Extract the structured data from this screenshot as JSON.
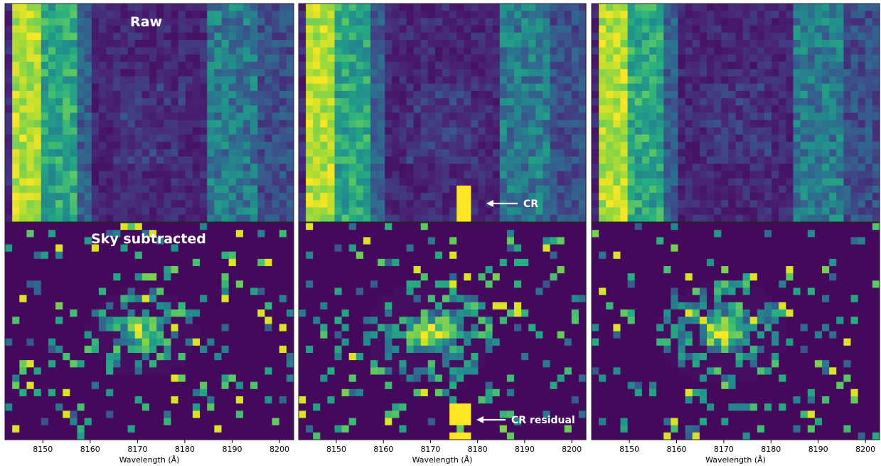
{
  "figure": {
    "colormap": "viridis",
    "colors": {
      "low": "#440154",
      "mid": "#21918c",
      "high": "#fde725",
      "annotation": "#ffffff"
    }
  },
  "labels": {
    "raw": "Raw",
    "sky_subtracted": "Sky subtracted",
    "cr": "CR",
    "cr_residual": "CR residual",
    "xlabel": "Wavelength (Å)"
  },
  "chart_data": {
    "type": "heatmap",
    "panels_layout": "2 rows x 3 columns",
    "x_axis": {
      "label": "Wavelength (Å)",
      "ticks": [
        8150,
        8160,
        8170,
        8180,
        8190,
        8200
      ],
      "xlim": [
        8142,
        8203
      ]
    },
    "panels": [
      {
        "row": "raw",
        "column": 1,
        "title": "Raw",
        "bright_columns_wavelength": [
          8145,
          8148
        ]
      },
      {
        "row": "raw",
        "column": 2,
        "annotation": "CR",
        "cosmic_ray_wavelength": 8176
      },
      {
        "row": "raw",
        "column": 3
      },
      {
        "row": "sky_subtracted",
        "column": 1,
        "title": "Sky subtracted",
        "source_center_wavelength": 8171
      },
      {
        "row": "sky_subtracted",
        "column": 2,
        "annotation": "CR residual",
        "cosmic_ray_wavelength": 8175,
        "source_center_wavelength": 8170
      },
      {
        "row": "sky_subtracted",
        "column": 3,
        "source_center_wavelength": 8170
      }
    ]
  }
}
